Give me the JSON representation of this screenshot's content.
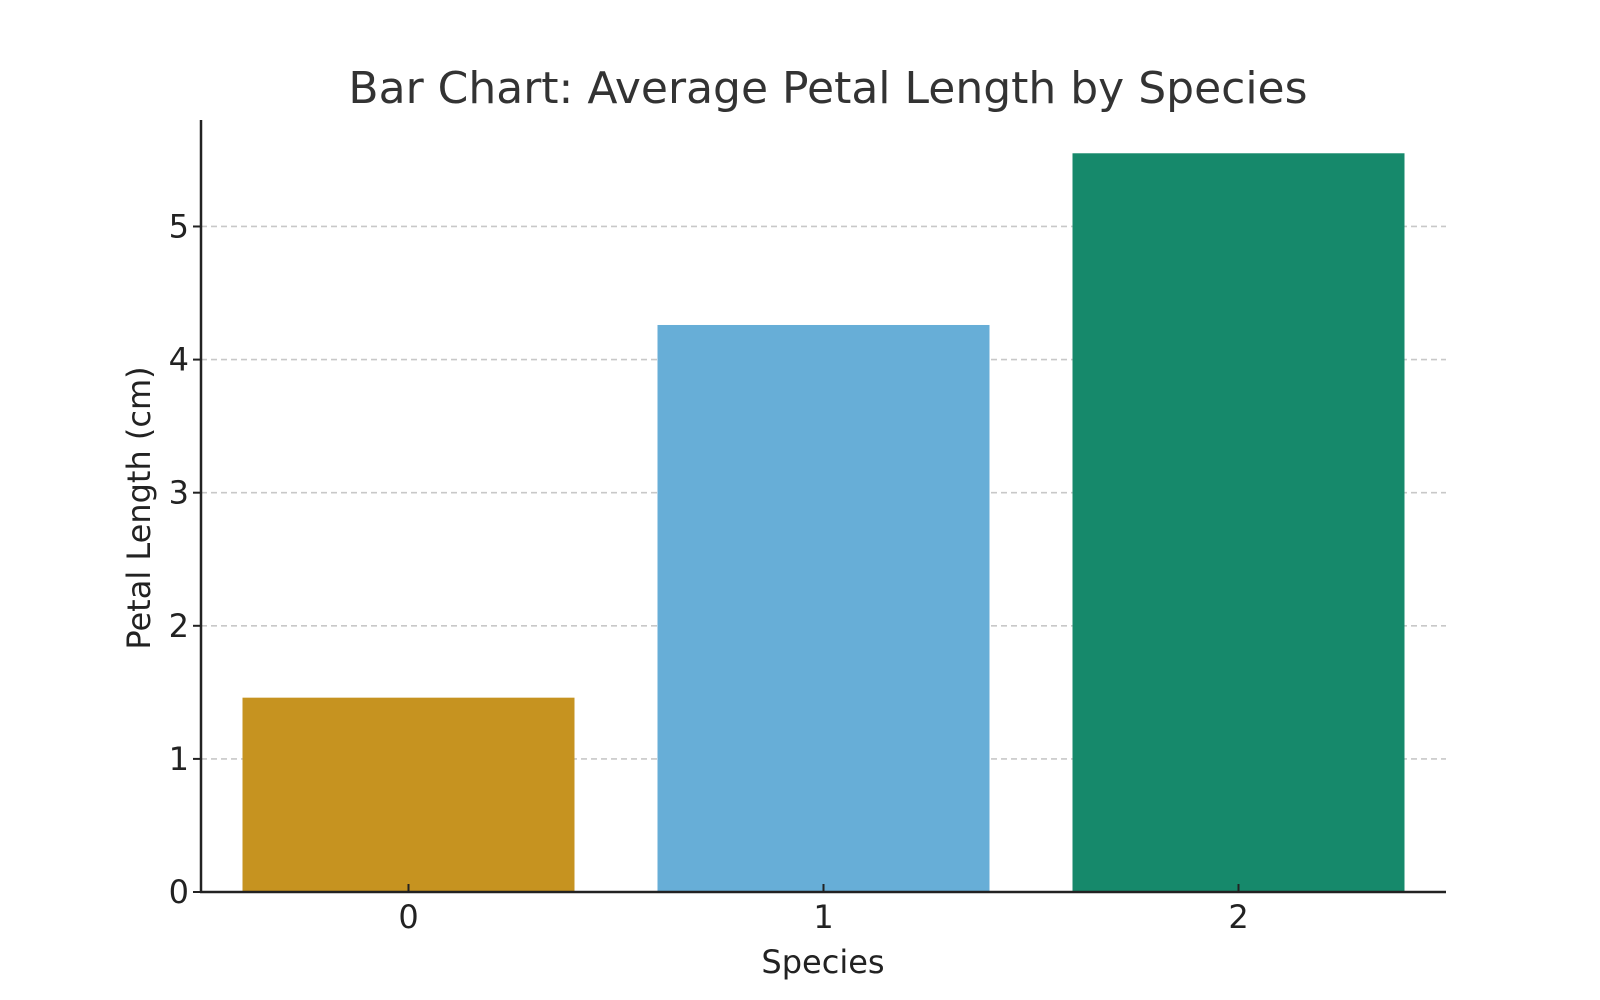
{
  "chart_data": {
    "type": "bar",
    "title": "Bar Chart: Average Petal Length by Species",
    "xlabel": "Species",
    "ylabel": "Petal Length (cm)",
    "categories": [
      "0",
      "1",
      "2"
    ],
    "values": [
      1.46,
      4.26,
      5.55
    ],
    "colors": [
      "#c69320",
      "#67aed7",
      "#16896b"
    ],
    "ylim": [
      0,
      5.8
    ],
    "yticks": [
      0,
      1,
      2,
      3,
      4,
      5
    ],
    "grid": "horizontal dashed",
    "legend": "none"
  }
}
